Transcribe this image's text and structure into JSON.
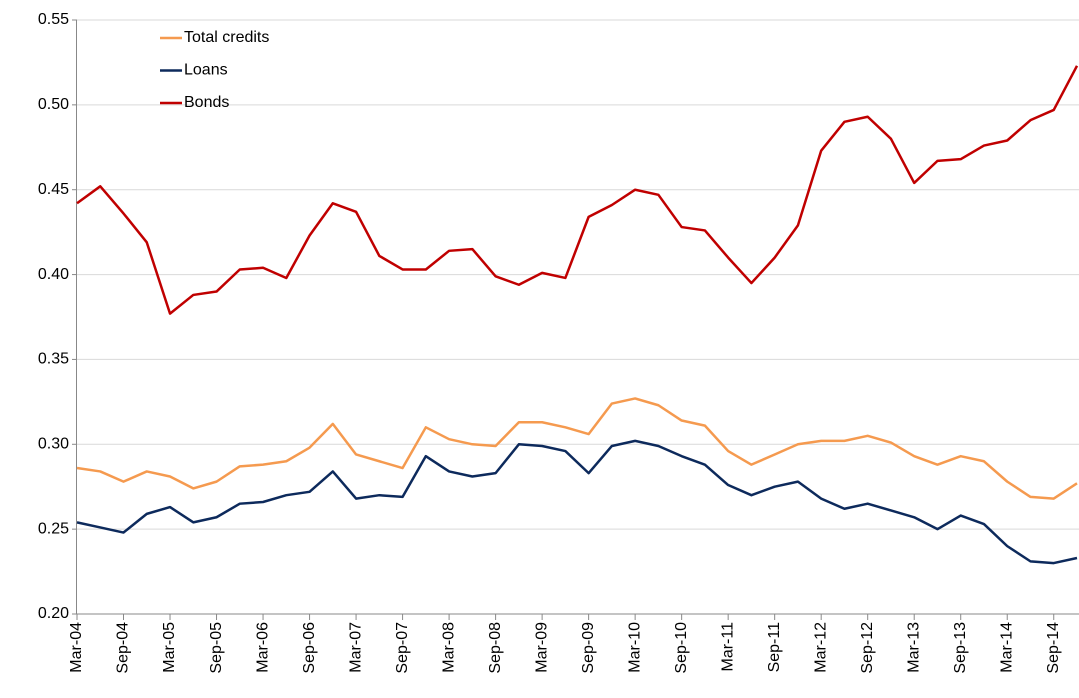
{
  "chart_data": {
    "type": "line",
    "categories": [
      "Mar-04",
      null,
      "Sep-04",
      null,
      "Mar-05",
      null,
      "Sep-05",
      null,
      "Mar-06",
      null,
      "Sep-06",
      null,
      "Mar-07",
      null,
      "Sep-07",
      null,
      "Mar-08",
      null,
      "Sep-08",
      null,
      "Mar-09",
      null,
      "Sep-09",
      null,
      "Mar-10",
      null,
      "Sep-10",
      null,
      "Mar-11",
      null,
      "Sep-11",
      null,
      "Mar-12",
      null,
      "Sep-12",
      null,
      "Mar-13",
      null,
      "Sep-13",
      null,
      "Mar-14",
      null,
      "Sep-14",
      null
    ],
    "series": [
      {
        "name": "Total credits",
        "color": "#f59a4f",
        "values": [
          0.286,
          0.284,
          0.278,
          0.284,
          0.281,
          0.274,
          0.278,
          0.287,
          0.288,
          0.29,
          0.298,
          0.312,
          0.294,
          0.29,
          0.286,
          0.31,
          0.303,
          0.3,
          0.299,
          0.313,
          0.313,
          0.31,
          0.306,
          0.324,
          0.327,
          0.323,
          0.314,
          0.311,
          0.296,
          0.288,
          0.294,
          0.3,
          0.302,
          0.302,
          0.305,
          0.301,
          0.293,
          0.288,
          0.293,
          0.29,
          0.278,
          0.269,
          0.268,
          0.277
        ]
      },
      {
        "name": "Loans",
        "color": "#0d2a5c",
        "values": [
          0.254,
          0.251,
          0.248,
          0.259,
          0.263,
          0.254,
          0.257,
          0.265,
          0.266,
          0.27,
          0.272,
          0.284,
          0.268,
          0.27,
          0.269,
          0.293,
          0.284,
          0.281,
          0.283,
          0.3,
          0.299,
          0.296,
          0.283,
          0.299,
          0.302,
          0.299,
          0.293,
          0.288,
          0.276,
          0.27,
          0.275,
          0.278,
          0.268,
          0.262,
          0.265,
          0.261,
          0.257,
          0.25,
          0.258,
          0.253,
          0.24,
          0.231,
          0.23,
          0.233
        ]
      },
      {
        "name": "Bonds",
        "color": "#c00000",
        "values": [
          0.442,
          0.452,
          0.436,
          0.419,
          0.377,
          0.388,
          0.39,
          0.403,
          0.404,
          0.398,
          0.423,
          0.442,
          0.437,
          0.411,
          0.403,
          0.403,
          0.414,
          0.415,
          0.399,
          0.394,
          0.401,
          0.398,
          0.434,
          0.441,
          0.45,
          0.447,
          0.428,
          0.426,
          0.41,
          0.395,
          0.41,
          0.429,
          0.473,
          0.49,
          0.493,
          0.48,
          0.454,
          0.467,
          0.468,
          0.476,
          0.479,
          0.491,
          0.497,
          0.523
        ]
      }
    ],
    "ylim": [
      0.2,
      0.55
    ],
    "yticks": [
      {
        "value": 0.2,
        "label": "0.20"
      },
      {
        "value": 0.25,
        "label": "0.25"
      },
      {
        "value": 0.3,
        "label": "0.30"
      },
      {
        "value": 0.35,
        "label": "0.35"
      },
      {
        "value": 0.4,
        "label": "0.40"
      },
      {
        "value": 0.45,
        "label": "0.45"
      },
      {
        "value": 0.5,
        "label": "0.50"
      },
      {
        "value": 0.55,
        "label": "0.55"
      }
    ],
    "grid": true,
    "legend": "top-left"
  }
}
